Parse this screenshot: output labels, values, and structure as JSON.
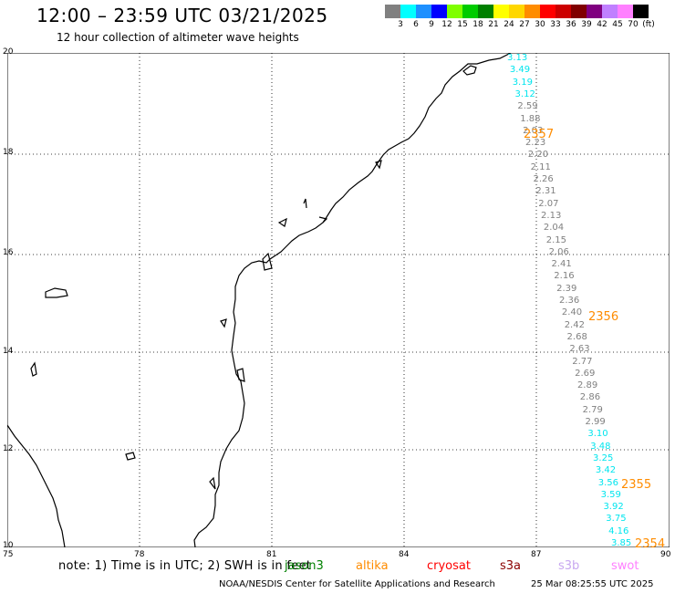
{
  "header": {
    "title": "12:00 – 23:59 UTC 03/21/2025",
    "subtitle": "12 hour collection of altimeter wave heights"
  },
  "colorbar": {
    "colors": [
      "#808080",
      "#00ffff",
      "#1e90ff",
      "#0000ff",
      "#7fff00",
      "#00cc00",
      "#008000",
      "#ffff00",
      "#ffd700",
      "#ff8c00",
      "#ff0000",
      "#cc0000",
      "#800000",
      "#800080",
      "#c080ff",
      "#ff80ff",
      "#000000"
    ],
    "labels": [
      "3",
      "6",
      "9",
      "12",
      "15",
      "18",
      "21",
      "24",
      "27",
      "30",
      "33",
      "36",
      "39",
      "42",
      "45",
      "70",
      "(ft)"
    ]
  },
  "axes": {
    "x_ticks": [
      "75",
      "78",
      "81",
      "84",
      "87",
      "90"
    ],
    "y_ticks": [
      "20",
      "18",
      "16",
      "14",
      "12",
      "10"
    ]
  },
  "track": {
    "values": [
      "3.13",
      "3.49",
      "3.19",
      "3.12",
      "2.59",
      "1.88",
      "2.03",
      "2.23",
      "2.20",
      "2.11",
      "2.26",
      "2.31",
      "2.07",
      "2.13",
      "2.04",
      "2.15",
      "2.06",
      "2.41",
      "2.16",
      "2.39",
      "2.36",
      "2.40",
      "2.42",
      "2.68",
      "2.63",
      "2.77",
      "2.69",
      "2.89",
      "2.86",
      "2.79",
      "2.99",
      "3.10",
      "3.48",
      "3.25",
      "3.42",
      "3.56",
      "3.59",
      "3.92",
      "3.75",
      "4.16",
      "3.85"
    ],
    "colors": [
      "#00e5ee",
      "#00e5ee",
      "#00e5ee",
      "#00e5ee",
      "#808080",
      "#808080",
      "#808080",
      "#808080",
      "#808080",
      "#808080",
      "#808080",
      "#808080",
      "#808080",
      "#808080",
      "#808080",
      "#808080",
      "#808080",
      "#808080",
      "#808080",
      "#808080",
      "#808080",
      "#808080",
      "#808080",
      "#808080",
      "#808080",
      "#808080",
      "#808080",
      "#808080",
      "#808080",
      "#808080",
      "#808080",
      "#00e5ee",
      "#00e5ee",
      "#00e5ee",
      "#00e5ee",
      "#00e5ee",
      "#00e5ee",
      "#00e5ee",
      "#00e5ee",
      "#00e5ee",
      "#00e5ee"
    ],
    "time_labels": [
      "2357",
      "2356",
      "2355",
      "2354"
    ],
    "time_label_color": "#ff8c00"
  },
  "footer": {
    "note": "note:  1) Time is in UTC;  2) SWH is in feet",
    "satellites": [
      {
        "name": "jason3",
        "color": "#008000"
      },
      {
        "name": "altika",
        "color": "#ff8c00"
      },
      {
        "name": "cryosat",
        "color": "#ff0000"
      },
      {
        "name": "s3a",
        "color": "#8b0000"
      },
      {
        "name": "s3b",
        "color": "#c8a8f0"
      },
      {
        "name": "swot",
        "color": "#ff80ff"
      }
    ],
    "credit": "NOAA/NESDIS Center for Satellite Applications and Research",
    "timestamp": "25 Mar 08:25:55 UTC 2025"
  }
}
